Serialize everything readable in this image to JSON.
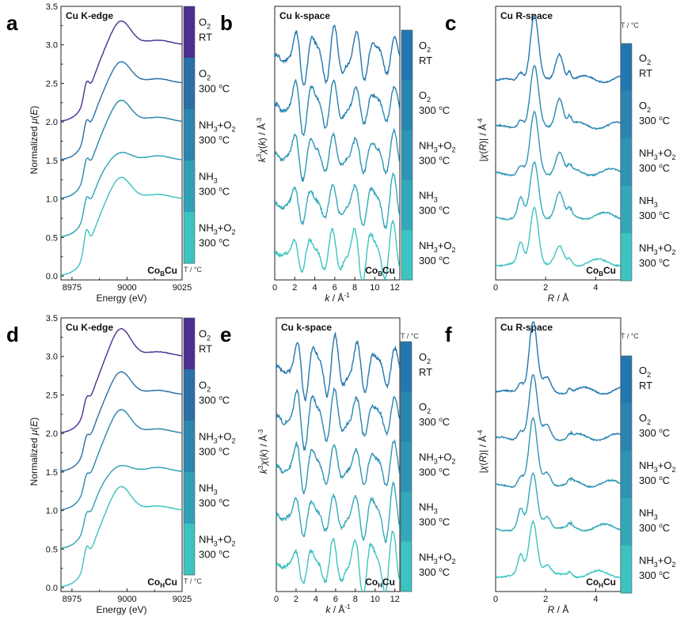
{
  "figure": {
    "condition_labels": [
      {
        "line1": "O",
        "sub1": "2",
        "tail1": "",
        "line2": "RT"
      },
      {
        "line1": "O",
        "sub1": "2",
        "tail1": "",
        "line2": "300 °C"
      },
      {
        "line1": "NH",
        "sub1": "3",
        "tail1": "+O",
        "sub2": "2",
        "line2": "300 °C"
      },
      {
        "line1": "NH",
        "sub1": "3",
        "tail1": "",
        "line2": "300 °C"
      },
      {
        "line1": "NH",
        "sub1": "3",
        "tail1": "+O",
        "sub2": "2",
        "line2": "300 °C"
      }
    ],
    "colorbar_unit": "T / °C",
    "series_names": [
      "O2 RT",
      "O2 300 °C",
      "NH3+O2 300 °C",
      "NH3 300 °C",
      "NH3+O2 300 °C"
    ],
    "series_colors": [
      "#4b2e8f",
      "#2a6fa6",
      "#2b86ad",
      "#2ea2b5",
      "#3cc2bf"
    ],
    "colorbar_colors": [
      "#4b2e8f",
      "#2a6fa6",
      "#2b86ad",
      "#2ea2b5",
      "#3cc2bf"
    ],
    "colorbar_colors_alt": [
      "#2377b0",
      "#2985b2",
      "#2e94b5",
      "#33a8bb",
      "#3cc4c2"
    ]
  },
  "chart_data": [
    {
      "panel": "a",
      "type": "line",
      "title": "Cu K-edge",
      "xlabel": "Energy (eV)",
      "ylabel": "Normalized μ(E)",
      "xlim": [
        8970,
        9025
      ],
      "ylim": [
        -0.05,
        3.5
      ],
      "xticks": [
        "8975",
        "9000",
        "9025"
      ],
      "xtick_values": [
        8975,
        9000,
        9025
      ],
      "minor_xtick_values": [
        8987.5,
        9012.5
      ],
      "yticks": [
        "0.0",
        "0.5",
        "1.0",
        "1.5",
        "2.0",
        "2.5",
        "3.0",
        "3.5"
      ],
      "ytick_values": [
        0,
        0.5,
        1.0,
        1.5,
        2.0,
        2.5,
        3.0,
        3.5
      ],
      "sample": "Co",
      "sample_sub": "B",
      "sample_tail": "Cu",
      "offsets": [
        2.0,
        1.5,
        1.0,
        0.5,
        0.0
      ],
      "peak_heights": [
        1.33,
        1.3,
        1.3,
        1.12,
        1.3
      ],
      "peak_energy": 8997,
      "shoulder": 0.2
    },
    {
      "panel": "b",
      "type": "line",
      "title": "Cu k-space",
      "xlabel": "k / Å⁻¹",
      "ylabel": "k³χ(k) / Å⁻³",
      "xlim": [
        0,
        12.5
      ],
      "ylim": [
        0,
        1
      ],
      "xticks": [
        "0",
        "2",
        "4",
        "6",
        "8",
        "10",
        "12"
      ],
      "xtick_values": [
        0,
        2,
        4,
        6,
        8,
        10,
        12
      ],
      "yticks": [],
      "ytick_values": [],
      "sample": "Co",
      "sample_sub": "B",
      "sample_tail": "Cu",
      "offsets": [
        0.82,
        0.64,
        0.46,
        0.28,
        0.1
      ],
      "amplitude": 0.085
    },
    {
      "panel": "c",
      "type": "line",
      "title": "Cu R-space",
      "xlabel": "R / Å",
      "ylabel": "|χ(R)| / Å⁻⁴",
      "xlim": [
        0,
        5
      ],
      "ylim": [
        0,
        1
      ],
      "xticks": [
        "0",
        "2",
        "4"
      ],
      "xtick_values": [
        0,
        2,
        4
      ],
      "yticks": [],
      "ytick_values": [],
      "sample": "Co",
      "sample_sub": "B",
      "sample_tail": "Cu",
      "offsets": [
        0.72,
        0.55,
        0.38,
        0.22,
        0.05
      ],
      "main_peak_R": 1.55,
      "second_peak_R": 2.55,
      "main_peak_heights": [
        0.24,
        0.22,
        0.22,
        0.2,
        0.21
      ],
      "second_peak_heights": [
        0.1,
        0.11,
        0.08,
        0.09,
        0.06
      ]
    },
    {
      "panel": "d",
      "type": "line",
      "title": "Cu K-edge",
      "xlabel": "Energy (eV)",
      "ylabel": "Normalized μ(E)",
      "xlim": [
        8970,
        9025
      ],
      "ylim": [
        -0.05,
        3.5
      ],
      "xticks": [
        "8975",
        "9000",
        "9025"
      ],
      "xtick_values": [
        8975,
        9000,
        9025
      ],
      "minor_xtick_values": [
        8987.5,
        9012.5
      ],
      "yticks": [
        "0.0",
        "0.5",
        "1.0",
        "1.5",
        "2.0",
        "2.5",
        "3.0",
        "3.5"
      ],
      "ytick_values": [
        0,
        0.5,
        1.0,
        1.5,
        2.0,
        2.5,
        3.0,
        3.5
      ],
      "sample": "Co",
      "sample_sub": "H",
      "sample_tail": "Cu",
      "offsets": [
        2.0,
        1.5,
        1.0,
        0.5,
        0.0
      ],
      "peak_heights": [
        1.38,
        1.32,
        1.33,
        1.1,
        1.33
      ],
      "peak_energy": 8997,
      "shoulder": 0.15
    },
    {
      "panel": "e",
      "type": "line",
      "title": "Cu k-space",
      "xlabel": "k / Å⁻¹",
      "ylabel": "k³χ(k) / Å⁻³",
      "xlim": [
        0,
        12.5
      ],
      "ylim": [
        0,
        1
      ],
      "xticks": [
        "0",
        "2",
        "4",
        "6",
        "8",
        "10",
        "12"
      ],
      "xtick_values": [
        0,
        2,
        4,
        6,
        8,
        10,
        12
      ],
      "yticks": [],
      "ytick_values": [],
      "sample": "Co",
      "sample_sub": "H",
      "sample_tail": "Cu",
      "offsets": [
        0.82,
        0.64,
        0.46,
        0.28,
        0.1
      ],
      "amplitude": 0.09
    },
    {
      "panel": "f",
      "type": "line",
      "title": "Cu R-space",
      "xlabel": "R / Å",
      "ylabel": "|χ(R)| / Å⁻⁴",
      "xlim": [
        0,
        5
      ],
      "ylim": [
        0,
        1
      ],
      "xticks": [
        "0",
        "2",
        "4"
      ],
      "xtick_values": [
        0,
        2,
        4
      ],
      "yticks": [],
      "ytick_values": [],
      "sample": "Co",
      "sample_sub": "H",
      "sample_tail": "Cu",
      "offsets": [
        0.72,
        0.55,
        0.38,
        0.22,
        0.05
      ],
      "main_peak_R": 1.5,
      "second_peak_R": 2.05,
      "main_peak_heights": [
        0.26,
        0.23,
        0.24,
        0.2,
        0.2
      ],
      "second_peak_heights": [
        0.05,
        0.05,
        0.05,
        0.05,
        0.04
      ]
    }
  ]
}
